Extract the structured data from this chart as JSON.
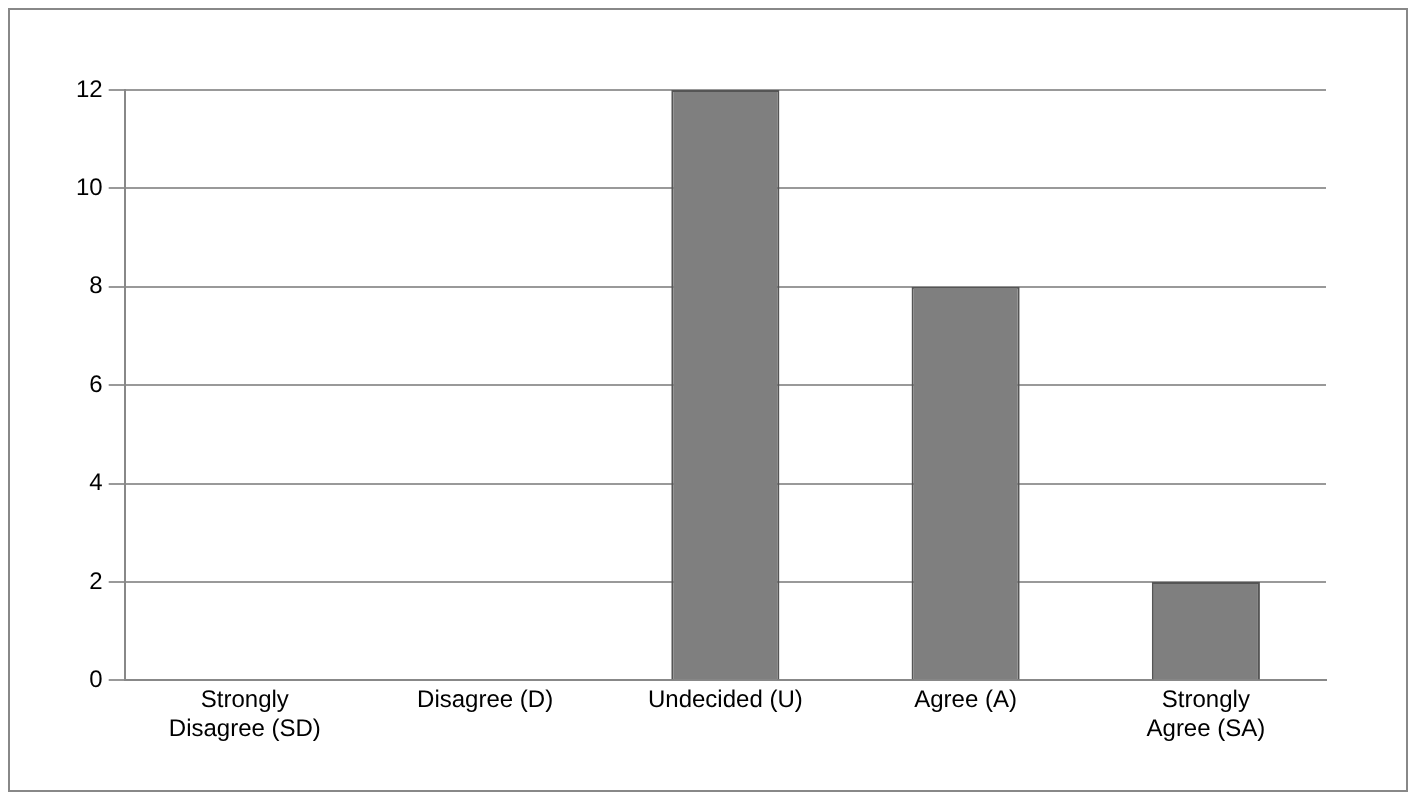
{
  "chart_data": {
    "type": "bar",
    "categories": [
      "Strongly Disagree (SD)",
      "Disagree (D)",
      "Undecided (U)",
      "Agree (A)",
      "Strongly Agree (SA)"
    ],
    "values": [
      0,
      0,
      12,
      8,
      2
    ],
    "color": "#7f7f7f",
    "ylim": [
      0,
      12
    ],
    "yticks": [
      0,
      2,
      4,
      6,
      8,
      10,
      12
    ],
    "grid": "y",
    "legend": false
  }
}
